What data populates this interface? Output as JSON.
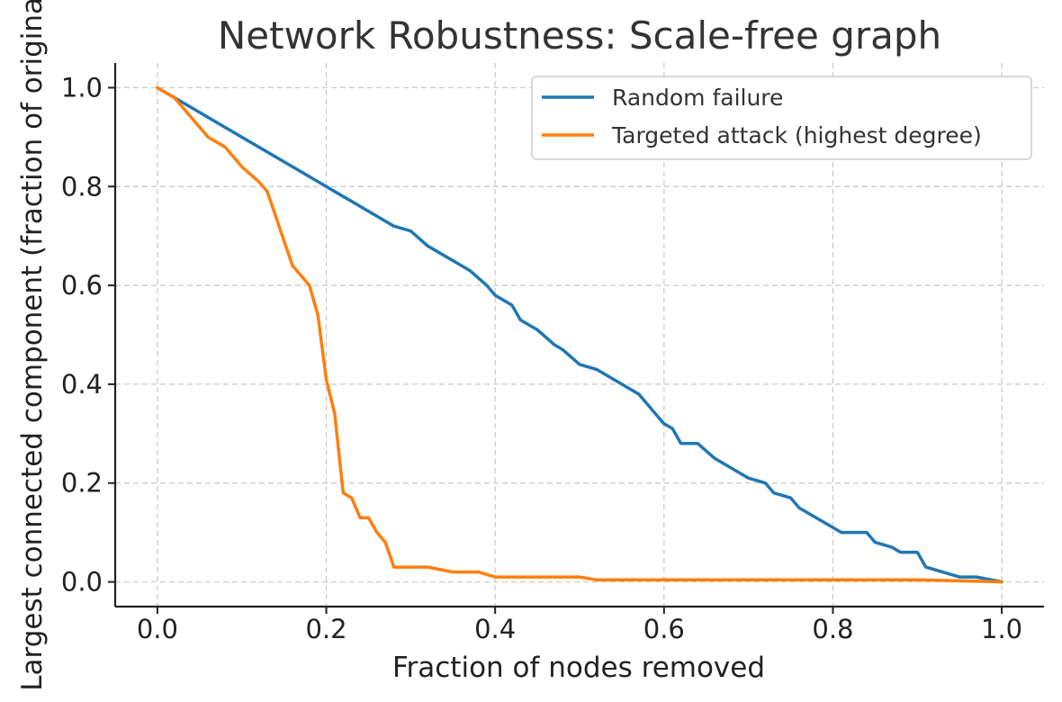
{
  "chart_data": {
    "type": "line",
    "title": "Network Robustness: Scale-free graph",
    "xlabel": "Fraction of nodes removed",
    "ylabel": "Largest connected component (fraction of original)",
    "xlim": [
      -0.05,
      1.05
    ],
    "ylim": [
      -0.05,
      1.05
    ],
    "xticks": [
      0.0,
      0.2,
      0.4,
      0.6,
      0.8,
      1.0
    ],
    "yticks": [
      0.0,
      0.2,
      0.4,
      0.6,
      0.8,
      1.0
    ],
    "xtick_labels": [
      "0.0",
      "0.2",
      "0.4",
      "0.6",
      "0.8",
      "1.0"
    ],
    "ytick_labels": [
      "0.0",
      "0.2",
      "0.4",
      "0.6",
      "0.8",
      "1.0"
    ],
    "grid": true,
    "legend_position": "top-right",
    "series": [
      {
        "name": "Random failure",
        "color": "#1f77b4",
        "x": [
          0.0,
          0.05,
          0.1,
          0.15,
          0.19,
          0.2,
          0.25,
          0.28,
          0.3,
          0.32,
          0.35,
          0.37,
          0.39,
          0.4,
          0.42,
          0.43,
          0.45,
          0.47,
          0.48,
          0.5,
          0.52,
          0.55,
          0.57,
          0.58,
          0.59,
          0.6,
          0.61,
          0.62,
          0.64,
          0.66,
          0.68,
          0.7,
          0.72,
          0.73,
          0.75,
          0.76,
          0.78,
          0.8,
          0.81,
          0.83,
          0.84,
          0.85,
          0.87,
          0.88,
          0.9,
          0.91,
          0.93,
          0.95,
          0.97,
          1.0
        ],
        "y": [
          1.0,
          0.95,
          0.9,
          0.85,
          0.81,
          0.8,
          0.75,
          0.72,
          0.71,
          0.68,
          0.65,
          0.63,
          0.6,
          0.58,
          0.56,
          0.53,
          0.51,
          0.48,
          0.47,
          0.44,
          0.43,
          0.4,
          0.38,
          0.36,
          0.34,
          0.32,
          0.31,
          0.28,
          0.28,
          0.25,
          0.23,
          0.21,
          0.2,
          0.18,
          0.17,
          0.15,
          0.13,
          0.11,
          0.1,
          0.1,
          0.1,
          0.08,
          0.07,
          0.06,
          0.06,
          0.03,
          0.02,
          0.01,
          0.01,
          0.0
        ]
      },
      {
        "name": "Targeted attack (highest degree)",
        "color": "#ff7f0e",
        "x": [
          0.0,
          0.02,
          0.04,
          0.06,
          0.08,
          0.1,
          0.12,
          0.13,
          0.14,
          0.15,
          0.16,
          0.17,
          0.18,
          0.19,
          0.2,
          0.21,
          0.22,
          0.23,
          0.24,
          0.25,
          0.26,
          0.27,
          0.28,
          0.3,
          0.32,
          0.35,
          0.38,
          0.4,
          0.45,
          0.5,
          0.52,
          0.6,
          0.7,
          0.8,
          0.9,
          1.0
        ],
        "y": [
          1.0,
          0.98,
          0.94,
          0.9,
          0.88,
          0.84,
          0.81,
          0.79,
          0.74,
          0.69,
          0.64,
          0.62,
          0.6,
          0.54,
          0.41,
          0.34,
          0.18,
          0.17,
          0.13,
          0.13,
          0.1,
          0.08,
          0.03,
          0.03,
          0.03,
          0.02,
          0.02,
          0.01,
          0.01,
          0.01,
          0.004,
          0.004,
          0.004,
          0.004,
          0.004,
          0.0
        ]
      }
    ]
  }
}
